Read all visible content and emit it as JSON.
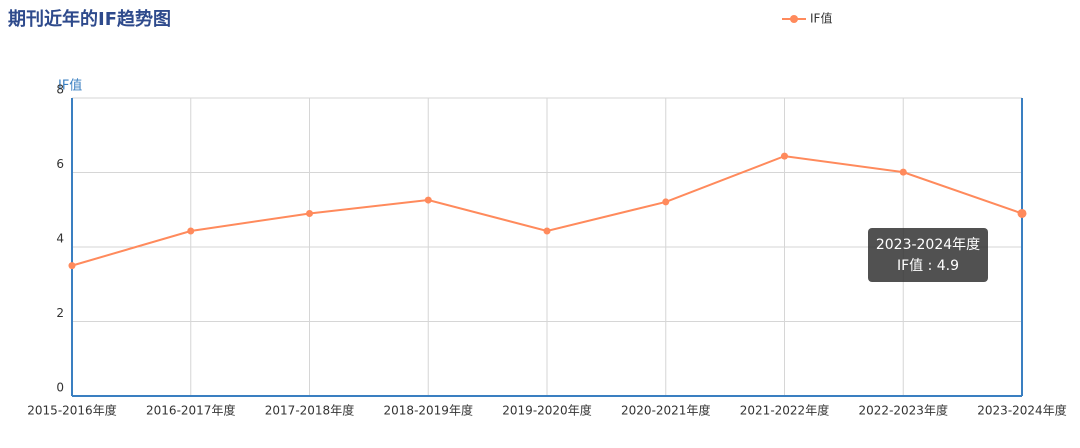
{
  "chart_data": {
    "type": "line",
    "title": "期刊近年的IF趋势图",
    "y_label": "IF值",
    "categories": [
      "2015-2016年度",
      "2016-2017年度",
      "2017-2018年度",
      "2018-2019年度",
      "2019-2020年度",
      "2020-2021年度",
      "2021-2022年度",
      "2022-2023年度",
      "2023-2024年度"
    ],
    "series": [
      {
        "name": "IF值",
        "color": "#ff8a5c",
        "values": [
          3.5,
          4.43,
          4.9,
          5.26,
          4.43,
          5.21,
          6.44,
          6.01,
          4.9
        ]
      }
    ],
    "ylim": [
      0,
      8
    ],
    "yticks": [
      0,
      2,
      4,
      6,
      8
    ],
    "grid": true,
    "legend": "top-right",
    "tooltip": {
      "title": "2023-2024年度",
      "text": "IF值 : 4.9"
    }
  }
}
